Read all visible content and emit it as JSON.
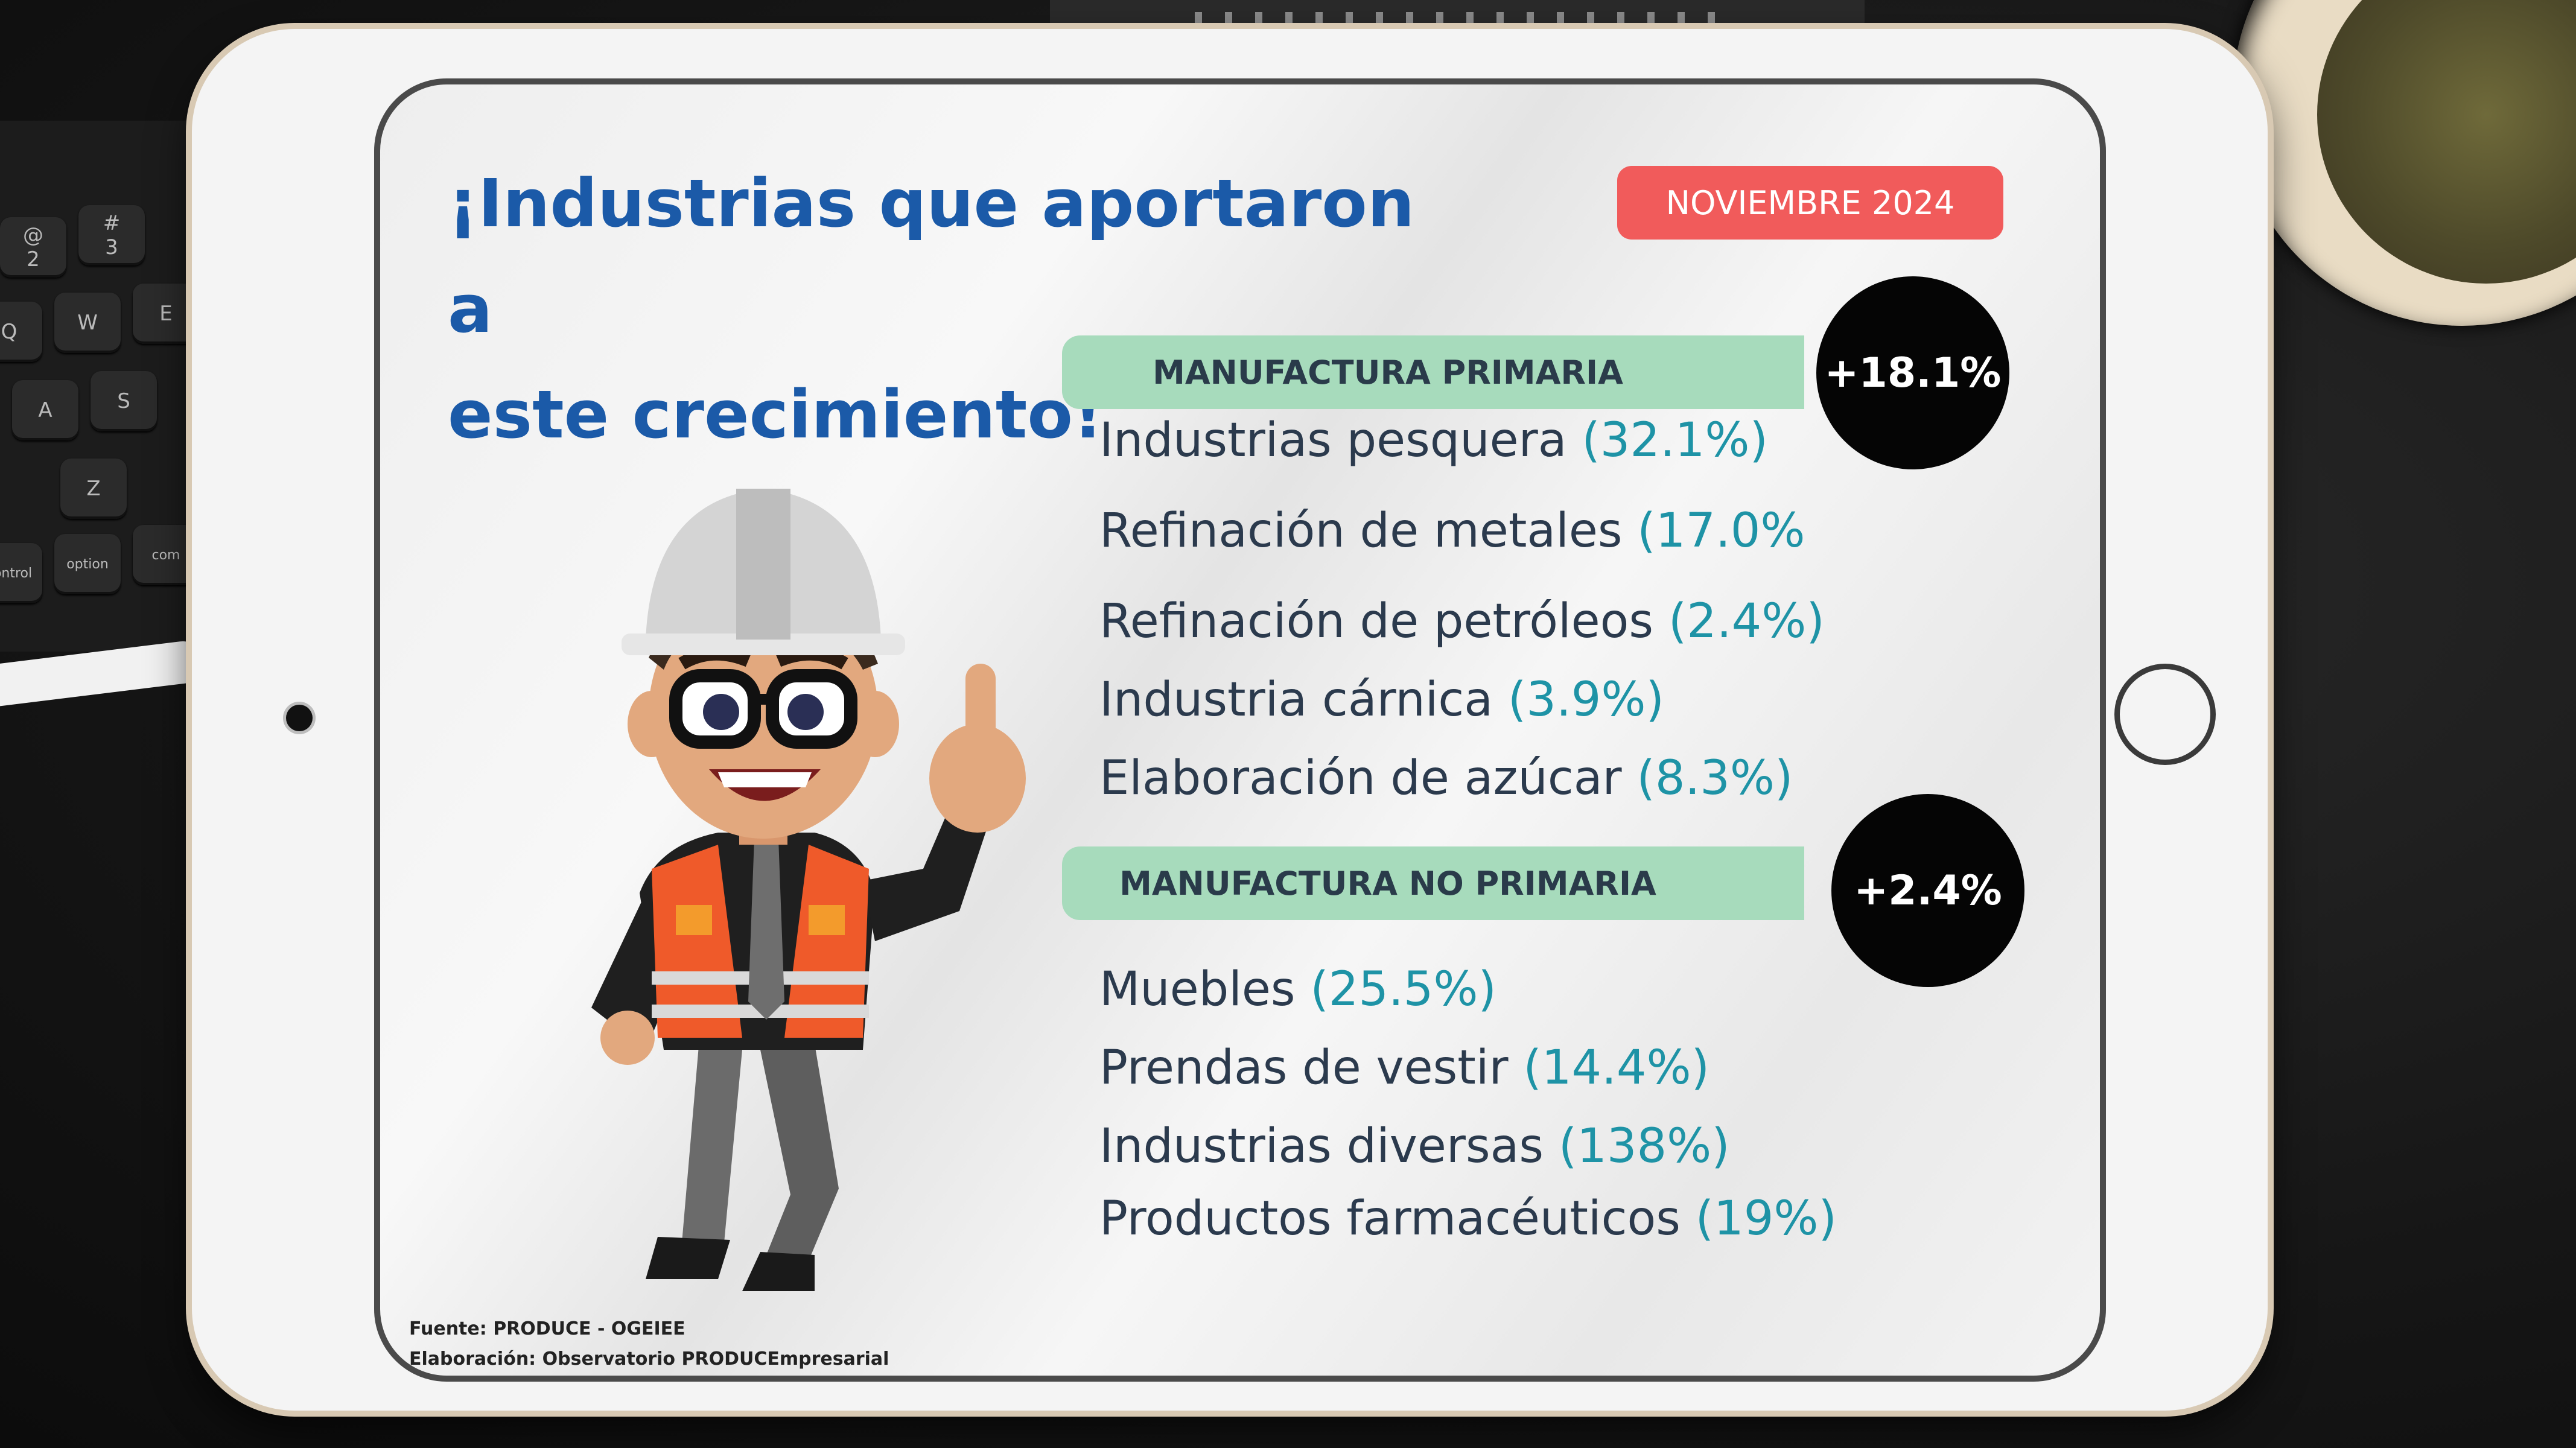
{
  "title_lines": [
    "¡Industrias que aportaron a",
    "este crecimiento!"
  ],
  "date_badge": "NOVIEMBRE 2024",
  "primary": {
    "label": "MANUFACTURA PRIMARIA",
    "growth": "+18.1%",
    "items": [
      {
        "name": "Industrias pesquera",
        "pct": "(32.1%)"
      },
      {
        "name": "Refinación de metales",
        "pct": "(17.0%"
      },
      {
        "name": "Refinación de petróleos",
        "pct": "(2.4%)"
      },
      {
        "name": "Industria cárnica",
        "pct": "(3.9%)"
      },
      {
        "name": "Elaboración de azúcar",
        "pct": "(8.3%)"
      }
    ]
  },
  "non_primary": {
    "label": "MANUFACTURA  NO PRIMARIA",
    "growth": "+2.4%",
    "items": [
      {
        "name": "Muebles",
        "pct": "(25.5%)"
      },
      {
        "name": "Prendas de vestir",
        "pct": "(14.4%)"
      },
      {
        "name": "Industrias diversas",
        "pct": "(138%)"
      },
      {
        "name": "Productos farmacéuticos",
        "pct": "(19%)"
      }
    ]
  },
  "source_lines": [
    "Fuente: PRODUCE - OGEIEE",
    "Elaboración: Observatorio PRODUCEmpresarial"
  ],
  "keyboard_keys": [
    "@",
    "2",
    "#",
    "3",
    "Q",
    "W",
    "E",
    "A",
    "S",
    "Z",
    "control",
    "option",
    "com"
  ],
  "colors": {
    "title": "#1b5aa8",
    "badge": "#f15b5b",
    "category_bar": "#a7dbbc",
    "pct_text": "#1e93a6"
  },
  "illustration": "construction-worker-thumbs-up"
}
